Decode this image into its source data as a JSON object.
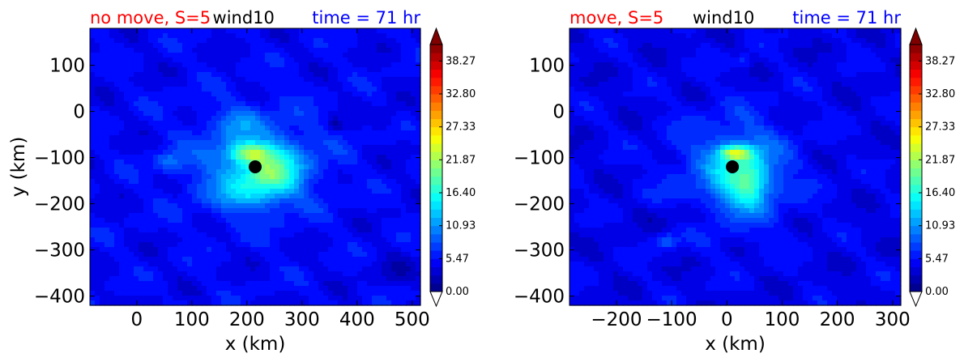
{
  "chart_data": [
    {
      "type": "heatmap",
      "title_left": "no move, S=5",
      "title_center": "wind10",
      "title_right": "time = 71 hr",
      "title_colors": {
        "left": "#ff0000",
        "center": "#000000",
        "right": "#0000ff"
      },
      "xlabel": "x (km)",
      "ylabel": "y (km)",
      "xlim": [
        -85,
        515
      ],
      "ylim": [
        -420,
        180
      ],
      "xticks": [
        0,
        100,
        200,
        300,
        400,
        500
      ],
      "yticks": [
        100,
        0,
        -100,
        -200,
        -300,
        -400
      ],
      "storm_center": {
        "x": 215,
        "y": -120
      },
      "field": {
        "background": 5.5,
        "blobs": [
          {
            "x": 215,
            "y": -110,
            "sx": 120,
            "sy": 110,
            "a": 5
          },
          {
            "x": 230,
            "y": -120,
            "sx": 70,
            "sy": 60,
            "a": 6
          },
          {
            "x": 205,
            "y": -90,
            "sx": 40,
            "sy": 20,
            "a": 9
          },
          {
            "x": 250,
            "y": -140,
            "sx": 45,
            "sy": 40,
            "a": 5
          },
          {
            "x": 200,
            "y": -180,
            "sx": 60,
            "sy": 35,
            "a": 4
          },
          {
            "x": 60,
            "y": -110,
            "sx": 25,
            "sy": 20,
            "a": 4
          },
          {
            "x": 185,
            "y": -20,
            "sx": 35,
            "sy": 30,
            "a": 3
          },
          {
            "x": 360,
            "y": -30,
            "sx": 15,
            "sy": 15,
            "a": -3
          },
          {
            "x": 455,
            "y": -10,
            "sx": 25,
            "sy": 25,
            "a": -2
          },
          {
            "x": 470,
            "y": -350,
            "sx": 40,
            "sy": 30,
            "a": -2
          }
        ]
      },
      "colorbar": {
        "min": 0.0,
        "max": 41.0,
        "step": 1.3667,
        "tick_labels": [
          "0.00",
          "5.47",
          "10.93",
          "16.40",
          "21.87",
          "27.33",
          "32.80",
          "38.27"
        ],
        "extend": "both"
      }
    },
    {
      "type": "heatmap",
      "title_left": "move, S=5",
      "title_center": "wind10",
      "title_right": "time = 71 hr",
      "title_colors": {
        "left": "#ff0000",
        "center": "#000000",
        "right": "#0000ff"
      },
      "xlabel": "x (km)",
      "ylabel": "",
      "xlim": [
        -285,
        315
      ],
      "ylim": [
        -420,
        180
      ],
      "xticks": [
        -200,
        -100,
        0,
        100,
        200,
        300
      ],
      "yticks": [
        100,
        0,
        -100,
        -200,
        -300,
        -400
      ],
      "storm_center": {
        "x": 10,
        "y": -120
      },
      "field": {
        "background": 5.0,
        "blobs": [
          {
            "x": 10,
            "y": -130,
            "sx": 110,
            "sy": 120,
            "a": 5
          },
          {
            "x": 30,
            "y": -140,
            "sx": 50,
            "sy": 70,
            "a": 8
          },
          {
            "x": 15,
            "y": -90,
            "sx": 30,
            "sy": 15,
            "a": 12
          },
          {
            "x": 45,
            "y": -160,
            "sx": 25,
            "sy": 40,
            "a": 4
          },
          {
            "x": -110,
            "y": -280,
            "sx": 20,
            "sy": 15,
            "a": 5
          },
          {
            "x": 30,
            "y": 110,
            "sx": 15,
            "sy": 15,
            "a": 3
          },
          {
            "x": -80,
            "y": -230,
            "sx": 60,
            "sy": 30,
            "a": -2
          }
        ]
      },
      "colorbar": {
        "min": 0.0,
        "max": 41.0,
        "step": 1.3667,
        "tick_labels": [
          "0.00",
          "5.47",
          "10.93",
          "16.40",
          "21.87",
          "27.33",
          "32.80",
          "38.27"
        ],
        "extend": "both"
      }
    }
  ]
}
